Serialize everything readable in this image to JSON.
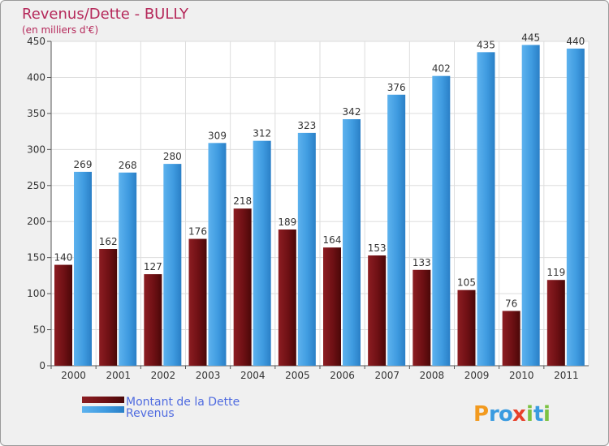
{
  "chart_data": {
    "type": "bar",
    "title": "Revenus/Dette - BULLY",
    "subtitle": "(en milliers d'€)",
    "categories": [
      "2000",
      "2001",
      "2002",
      "2003",
      "2004",
      "2005",
      "2006",
      "2007",
      "2008",
      "2009",
      "2010",
      "2011"
    ],
    "series": [
      {
        "name": "Montant de la Dette",
        "color": "#7a1518",
        "values": [
          140,
          162,
          127,
          176,
          218,
          189,
          164,
          153,
          133,
          105,
          76,
          119
        ]
      },
      {
        "name": "Revenus",
        "color": "#4aa3e6",
        "values": [
          269,
          268,
          280,
          309,
          312,
          323,
          342,
          376,
          402,
          435,
          445,
          440
        ]
      }
    ],
    "ylim": [
      0,
      450
    ],
    "yticks": [
      0,
      50,
      100,
      150,
      200,
      250,
      300,
      350,
      400,
      450
    ],
    "grid": true,
    "legend_position": "bottom-left"
  },
  "logo": {
    "text": "Proxiti",
    "letters": [
      {
        "ch": "P",
        "color": "#f29a1f"
      },
      {
        "ch": "r",
        "color": "#3a9be0"
      },
      {
        "ch": "o",
        "color": "#3a9be0"
      },
      {
        "ch": "x",
        "color": "#e8402a"
      },
      {
        "ch": "i",
        "color": "#7cc242"
      },
      {
        "ch": "t",
        "color": "#3a9be0"
      },
      {
        "ch": "i",
        "color": "#7cc242"
      }
    ]
  }
}
